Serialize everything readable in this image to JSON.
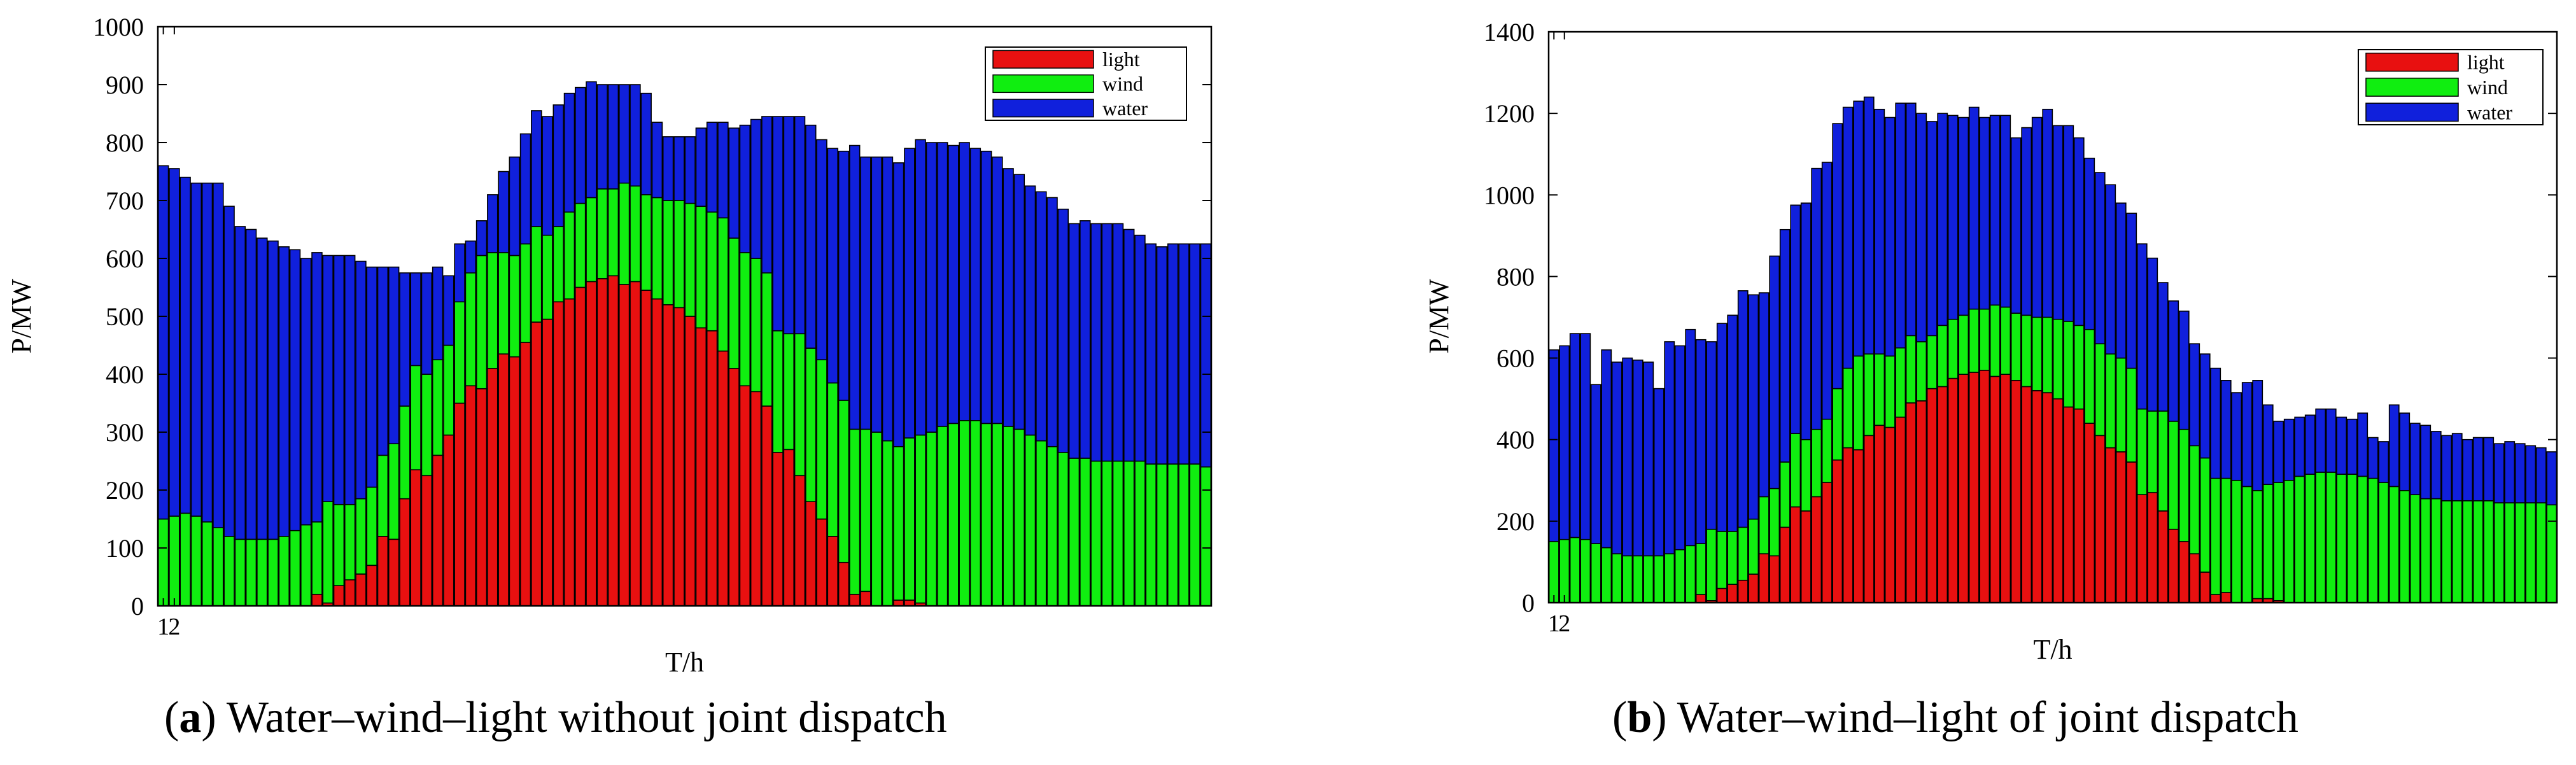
{
  "figure": {
    "captions": [
      {
        "letter": "a",
        "text": " Water–wind–light without joint dispatch"
      },
      {
        "letter": "b",
        "text": " Water–wind–light of joint dispatch"
      }
    ]
  },
  "chart_data": [
    {
      "id": "a",
      "type": "bar",
      "stacked": true,
      "xlabel": "T/h",
      "ylabel": "P/MW",
      "ylim": [
        0,
        1000
      ],
      "yticks": [
        0,
        100,
        200,
        300,
        400,
        500,
        600,
        700,
        800,
        900,
        1000
      ],
      "xtick_labels": [
        "1",
        "2"
      ],
      "legend": {
        "position": "top-right",
        "entries": [
          "light",
          "wind",
          "water"
        ]
      },
      "colors": {
        "light": "#e81010",
        "wind": "#10ee10",
        "water": "#1020dc"
      },
      "categories": [
        1,
        2,
        3,
        4,
        5,
        6,
        7,
        8,
        9,
        10,
        11,
        12,
        13,
        14,
        15,
        16,
        17,
        18,
        19,
        20,
        21,
        22,
        23,
        24,
        25,
        26,
        27,
        28,
        29,
        30,
        31,
        32,
        33,
        34,
        35,
        36,
        37,
        38,
        39,
        40,
        41,
        42,
        43,
        44,
        45,
        46,
        47,
        48,
        49,
        50,
        51,
        52,
        53,
        54,
        55,
        56,
        57,
        58,
        59,
        60,
        61,
        62,
        63,
        64,
        65,
        66,
        67,
        68,
        69,
        70,
        71,
        72,
        73,
        74,
        75,
        76,
        77,
        78,
        79,
        80,
        81,
        82,
        83,
        84,
        85,
        86,
        87,
        88,
        89,
        90,
        91,
        92,
        93,
        94,
        95,
        96
      ],
      "series": [
        {
          "name": "light",
          "values": [
            0,
            0,
            0,
            0,
            0,
            0,
            0,
            0,
            0,
            0,
            0,
            0,
            0,
            0,
            20,
            5,
            35,
            45,
            55,
            70,
            120,
            115,
            185,
            235,
            225,
            260,
            295,
            350,
            380,
            375,
            410,
            435,
            430,
            455,
            490,
            495,
            525,
            530,
            550,
            560,
            565,
            570,
            555,
            560,
            545,
            530,
            520,
            515,
            500,
            480,
            475,
            440,
            410,
            380,
            370,
            345,
            265,
            270,
            225,
            180,
            150,
            120,
            75,
            20,
            25,
            0,
            0,
            10,
            10,
            5,
            0,
            0,
            0,
            0,
            0,
            0,
            0,
            0,
            0,
            0,
            0,
            0,
            0,
            0,
            0,
            0,
            0,
            0,
            0,
            0,
            0,
            0,
            0,
            0,
            0,
            0
          ]
        },
        {
          "name": "wind",
          "values": [
            150,
            155,
            160,
            155,
            145,
            135,
            120,
            115,
            115,
            115,
            115,
            120,
            130,
            140,
            125,
            175,
            140,
            130,
            130,
            135,
            140,
            165,
            160,
            180,
            175,
            165,
            155,
            175,
            195,
            230,
            200,
            175,
            175,
            170,
            165,
            145,
            130,
            150,
            145,
            145,
            155,
            150,
            175,
            165,
            165,
            175,
            180,
            185,
            195,
            210,
            205,
            230,
            225,
            230,
            230,
            230,
            210,
            200,
            245,
            265,
            275,
            265,
            280,
            285,
            280,
            300,
            285,
            265,
            280,
            290,
            300,
            310,
            315,
            320,
            320,
            315,
            315,
            310,
            305,
            295,
            285,
            275,
            265,
            255,
            255,
            250,
            250,
            250,
            250,
            250,
            245,
            245,
            245,
            245,
            245,
            240
          ]
        },
        {
          "name": "water",
          "values": [
            610,
            600,
            580,
            575,
            585,
            595,
            570,
            540,
            535,
            520,
            515,
            500,
            485,
            460,
            465,
            425,
            430,
            430,
            410,
            380,
            325,
            305,
            230,
            160,
            175,
            160,
            120,
            100,
            55,
            60,
            100,
            140,
            170,
            190,
            200,
            205,
            210,
            205,
            200,
            200,
            180,
            180,
            170,
            175,
            175,
            130,
            110,
            110,
            115,
            135,
            155,
            165,
            190,
            220,
            240,
            270,
            370,
            375,
            375,
            385,
            380,
            405,
            430,
            490,
            470,
            475,
            490,
            490,
            500,
            510,
            500,
            490,
            480,
            480,
            470,
            470,
            460,
            445,
            440,
            430,
            430,
            430,
            420,
            405,
            410,
            410,
            410,
            410,
            400,
            390,
            380,
            375,
            380,
            380,
            380,
            385
          ]
        }
      ]
    },
    {
      "id": "b",
      "type": "bar",
      "stacked": true,
      "xlabel": "T/h",
      "ylabel": "P/MW",
      "ylim": [
        0,
        1400
      ],
      "yticks": [
        0,
        200,
        400,
        600,
        800,
        1000,
        1200,
        1400
      ],
      "xtick_labels": [
        "1",
        "2"
      ],
      "legend": {
        "position": "top-right",
        "entries": [
          "light",
          "wind",
          "water"
        ]
      },
      "colors": {
        "light": "#e81010",
        "wind": "#10ee10",
        "water": "#1020dc"
      },
      "categories": [
        1,
        2,
        3,
        4,
        5,
        6,
        7,
        8,
        9,
        10,
        11,
        12,
        13,
        14,
        15,
        16,
        17,
        18,
        19,
        20,
        21,
        22,
        23,
        24,
        25,
        26,
        27,
        28,
        29,
        30,
        31,
        32,
        33,
        34,
        35,
        36,
        37,
        38,
        39,
        40,
        41,
        42,
        43,
        44,
        45,
        46,
        47,
        48,
        49,
        50,
        51,
        52,
        53,
        54,
        55,
        56,
        57,
        58,
        59,
        60,
        61,
        62,
        63,
        64,
        65,
        66,
        67,
        68,
        69,
        70,
        71,
        72,
        73,
        74,
        75,
        76,
        77,
        78,
        79,
        80,
        81,
        82,
        83,
        84,
        85,
        86,
        87,
        88,
        89,
        90,
        91,
        92,
        93,
        94,
        95,
        96
      ],
      "series": [
        {
          "name": "light",
          "values": [
            0,
            0,
            0,
            0,
            0,
            0,
            0,
            0,
            0,
            0,
            0,
            0,
            0,
            0,
            20,
            5,
            35,
            45,
            55,
            70,
            120,
            115,
            185,
            235,
            225,
            260,
            295,
            350,
            380,
            375,
            410,
            435,
            430,
            455,
            490,
            495,
            525,
            530,
            550,
            560,
            565,
            570,
            555,
            560,
            545,
            530,
            520,
            515,
            500,
            480,
            475,
            440,
            410,
            380,
            370,
            345,
            265,
            270,
            225,
            180,
            150,
            120,
            75,
            20,
            25,
            0,
            0,
            10,
            10,
            5,
            0,
            0,
            0,
            0,
            0,
            0,
            0,
            0,
            0,
            0,
            0,
            0,
            0,
            0,
            0,
            0,
            0,
            0,
            0,
            0,
            0,
            0,
            0,
            0,
            0,
            0
          ]
        },
        {
          "name": "wind",
          "values": [
            150,
            155,
            160,
            155,
            145,
            135,
            120,
            115,
            115,
            115,
            115,
            120,
            130,
            140,
            125,
            175,
            140,
            130,
            130,
            135,
            140,
            165,
            160,
            180,
            175,
            165,
            155,
            175,
            195,
            230,
            200,
            175,
            175,
            170,
            165,
            145,
            130,
            150,
            145,
            145,
            155,
            150,
            175,
            165,
            165,
            175,
            180,
            185,
            195,
            210,
            205,
            230,
            225,
            230,
            230,
            230,
            210,
            200,
            245,
            265,
            275,
            265,
            280,
            285,
            280,
            300,
            285,
            265,
            280,
            290,
            300,
            310,
            315,
            320,
            320,
            315,
            315,
            310,
            305,
            295,
            285,
            275,
            265,
            255,
            255,
            250,
            250,
            250,
            250,
            250,
            245,
            245,
            245,
            245,
            245,
            240
          ]
        },
        {
          "name": "water",
          "values": [
            470,
            475,
            500,
            505,
            390,
            485,
            470,
            485,
            480,
            475,
            410,
            520,
            500,
            530,
            500,
            460,
            510,
            530,
            580,
            550,
            500,
            570,
            570,
            560,
            580,
            640,
            630,
            650,
            640,
            625,
            630,
            600,
            585,
            600,
            570,
            560,
            525,
            520,
            500,
            485,
            495,
            470,
            465,
            470,
            430,
            460,
            490,
            510,
            475,
            480,
            460,
            420,
            420,
            415,
            380,
            380,
            405,
            375,
            315,
            295,
            290,
            250,
            255,
            270,
            240,
            215,
            255,
            270,
            195,
            150,
            150,
            145,
            145,
            155,
            155,
            140,
            135,
            155,
            100,
            100,
            200,
            190,
            175,
            180,
            165,
            160,
            165,
            150,
            155,
            155,
            145,
            150,
            145,
            140,
            135,
            130
          ]
        }
      ]
    }
  ]
}
